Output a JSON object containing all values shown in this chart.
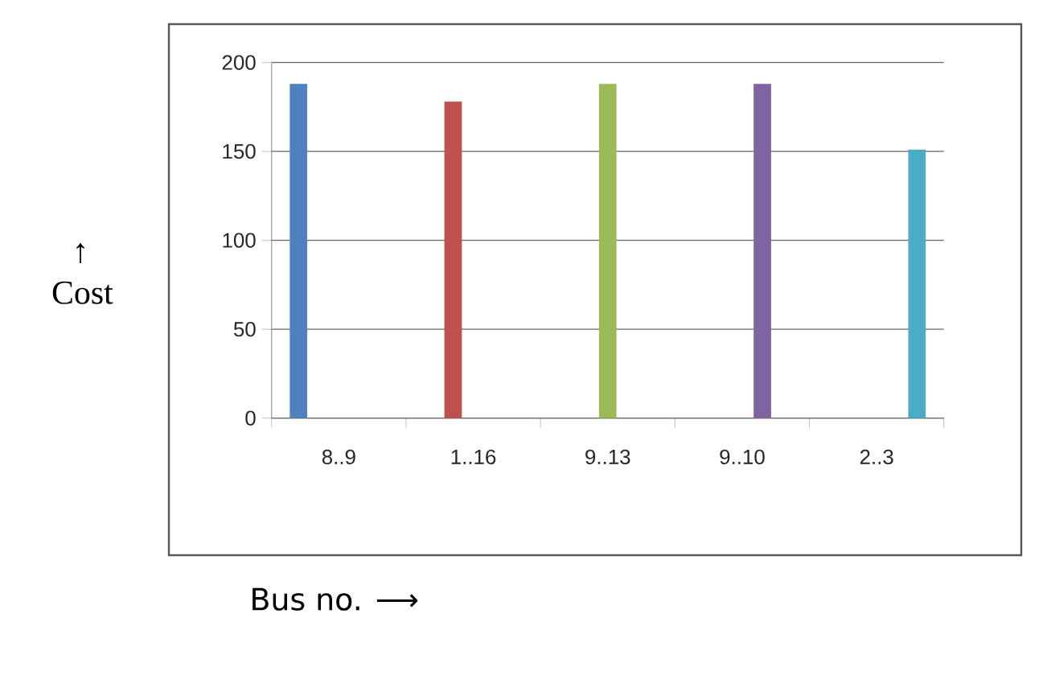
{
  "chart_data": {
    "type": "bar",
    "xlabel": "Bus no. ⟶",
    "ylabel": "↑ Cost",
    "categories": [
      "8..9",
      "1..16",
      "9..13",
      "9..10",
      "2..3"
    ],
    "series": [
      {
        "color": "#4f81bd",
        "values": [
          188,
          null,
          null,
          null,
          null
        ]
      },
      {
        "color": "#c0504d",
        "values": [
          null,
          178,
          null,
          null,
          null
        ]
      },
      {
        "color": "#9bbb59",
        "values": [
          null,
          null,
          188,
          null,
          null
        ]
      },
      {
        "color": "#8064a2",
        "values": [
          null,
          null,
          null,
          188,
          null
        ]
      },
      {
        "color": "#4bacc6",
        "values": [
          null,
          null,
          null,
          null,
          151
        ]
      }
    ],
    "ylim": [
      0,
      200
    ],
    "yticks": [
      0,
      50,
      100,
      150,
      200
    ],
    "grid": "y"
  }
}
